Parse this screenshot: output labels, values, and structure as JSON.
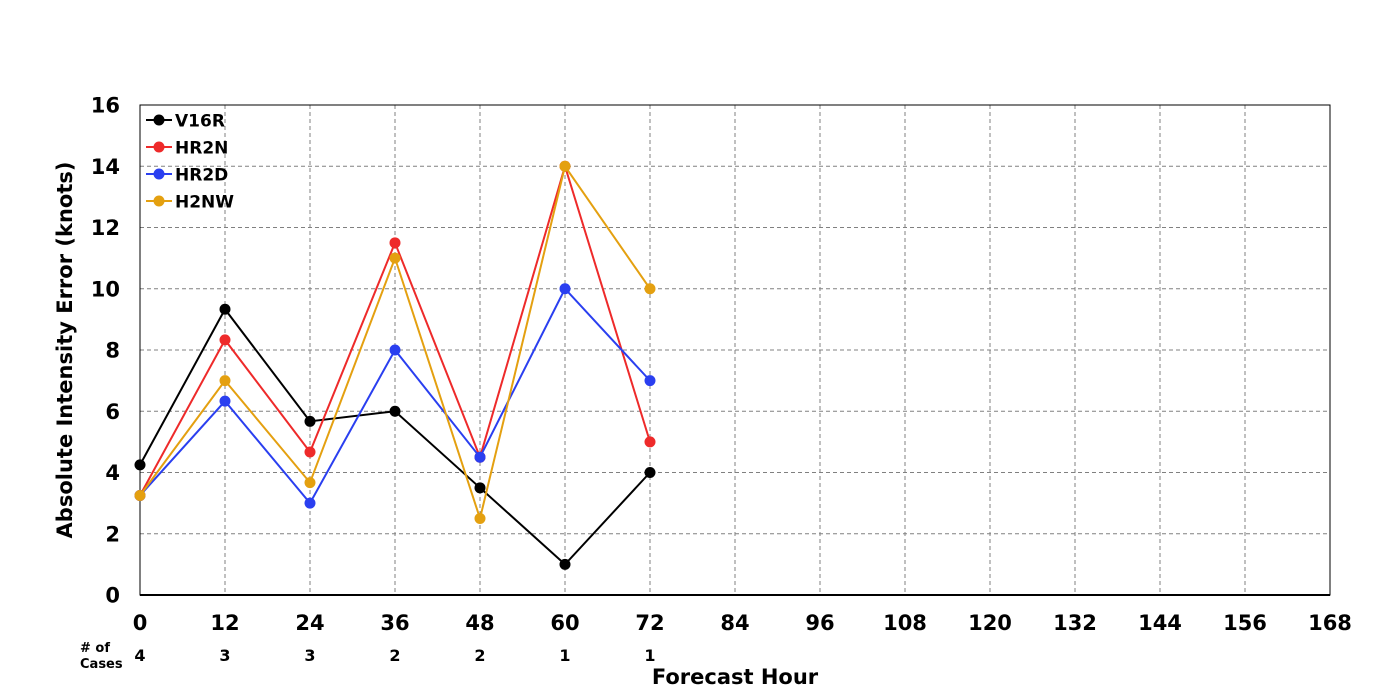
{
  "chart_data": {
    "type": "line",
    "xlabel": "Forecast Hour",
    "ylabel": "Absolute Intensity Error (knots)",
    "xlim": [
      0,
      168
    ],
    "ylim": [
      0,
      16
    ],
    "x_ticks": [
      "0",
      "12",
      "24",
      "36",
      "48",
      "60",
      "72",
      "84",
      "96",
      "108",
      "120",
      "132",
      "144",
      "156",
      "168"
    ],
    "y_ticks": [
      "0",
      "2",
      "4",
      "6",
      "8",
      "10",
      "12",
      "14",
      "16"
    ],
    "grid": true,
    "legend_position": "top-left",
    "x": [
      0,
      12,
      24,
      36,
      48,
      60,
      72
    ],
    "series": [
      {
        "name": "V16R",
        "color": "#000000",
        "values": [
          4.25,
          9.33,
          5.67,
          6.0,
          3.5,
          1.0,
          4.0
        ]
      },
      {
        "name": "HR2N",
        "color": "#ee2a2a",
        "values": [
          3.25,
          8.33,
          4.67,
          11.5,
          4.5,
          14.0,
          5.0
        ]
      },
      {
        "name": "HR2D",
        "color": "#2a3ff0",
        "values": [
          3.25,
          6.33,
          3.0,
          8.0,
          4.5,
          10.0,
          7.0
        ]
      },
      {
        "name": "H2NW",
        "color": "#e4a010",
        "values": [
          3.25,
          7.0,
          3.67,
          11.0,
          2.5,
          14.0,
          10.0
        ]
      }
    ],
    "cases_label_line1": "# of",
    "cases_label_line2": "Cases",
    "cases": [
      "4",
      "3",
      "3",
      "2",
      "2",
      "1",
      "1"
    ]
  }
}
